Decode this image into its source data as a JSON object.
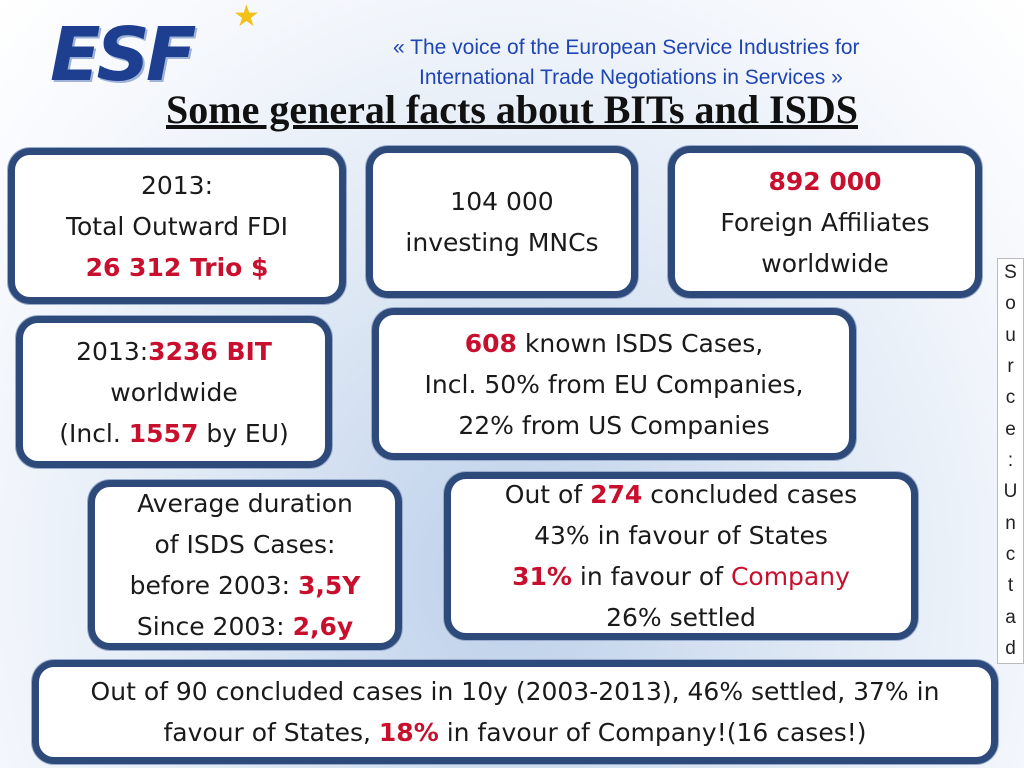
{
  "logo": {
    "text": "ESF",
    "star_icon": "star-icon"
  },
  "tagline": {
    "line1": "« The voice of the European Service Industries for",
    "line2": "International Trade Negotiations in Services »"
  },
  "title": "Some general facts about BITs and ISDS",
  "boxes": {
    "fdi": {
      "l1": "2013:",
      "l2": "Total Outward FDI",
      "l3": "26 312 Trio $"
    },
    "mncs": {
      "l1": "104 000",
      "l2": "investing MNCs"
    },
    "affiliates": {
      "l1": "892 000",
      "l2": "Foreign Affiliates",
      "l3": "worldwide"
    },
    "bit": {
      "l1a": "2013:",
      "l1b": "3236 BIT",
      "l2": "worldwide",
      "l3a": "(Incl. ",
      "l3b": "1557",
      "l3c": " by EU)"
    },
    "isds": {
      "l1a": "608",
      "l1b": " known ISDS Cases,",
      "l2": "Incl. 50% from EU Companies,",
      "l3": "22% from US Companies"
    },
    "duration": {
      "l1": "Average duration",
      "l2": "of ISDS Cases:",
      "l3a": "before 2003: ",
      "l3b": "3,5Y",
      "l4a": "Since 2003: ",
      "l4b": "2,6y"
    },
    "concluded": {
      "l1a": "Out of ",
      "l1b": "274",
      "l1c": " concluded cases",
      "l2": "43% in favour of States",
      "l3a": "31%",
      "l3b": " in favour of ",
      "l3c": "Company",
      "l4": "26% settled"
    },
    "decade": {
      "l1": "Out of 90 concluded cases in 10y (2003-2013), 46% settled, 37% in",
      "l2a": "favour of States, ",
      "l2b": "18%",
      "l2c": " in favour of Company!(16 cases!)"
    }
  },
  "source_label": [
    "S",
    "o",
    "u",
    "r",
    "c",
    "e",
    ":",
    "U",
    "n",
    "c",
    "t",
    "a",
    "d"
  ],
  "colors": {
    "box_border": "#2e4a7a",
    "highlight": "#c8102e",
    "tagline": "#1f45b5",
    "logo": "#1e3f8f",
    "star": "#f3c21a"
  }
}
